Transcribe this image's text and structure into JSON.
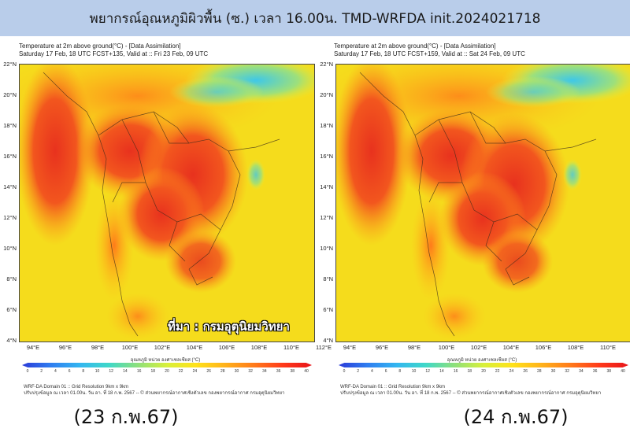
{
  "banner": {
    "title": "พยากรณ์อุณหภูมิผิวพื้น (ซ.) เวลา 16.00น. TMD-WRFDA init.2024021718"
  },
  "panels": [
    {
      "title_line1": "Temperature at 2m above ground(°C) - [Data Assimilation]",
      "title_line2": "Saturday 17 Feb, 18 UTC FCST+135, Valid at :: Fri 23 Feb, 09 UTC",
      "date_label": "(23 ก.พ.67)"
    },
    {
      "title_line1": "Temperature at 2m above ground(°C) - [Data Assimilation]",
      "title_line2": "Saturday 17 Feb, 18 UTC FCST+159, Valid at :: Sat 24 Feb, 09 UTC",
      "date_label": "(24 ก.พ.67)"
    }
  ],
  "axes": {
    "lat_labels": [
      "22°N",
      "20°N",
      "18°N",
      "16°N",
      "14°N",
      "12°N",
      "10°N",
      "8°N",
      "6°N",
      "4°N"
    ],
    "lon_labels": [
      "94°E",
      "96°E",
      "98°E",
      "100°E",
      "102°E",
      "104°E",
      "106°E",
      "108°E",
      "110°E",
      "112°E"
    ]
  },
  "colorbar": {
    "title": "อุณหภูมิ หน่วย องศาเซลเซียส (°C)",
    "ticks": [
      "0",
      "2",
      "4",
      "6",
      "8",
      "10",
      "12",
      "14",
      "16",
      "18",
      "20",
      "22",
      "24",
      "26",
      "28",
      "30",
      "32",
      "34",
      "36",
      "38",
      "40"
    ],
    "colors": [
      "#2b3bd8",
      "#2f7ef0",
      "#33b6f0",
      "#3fd8c8",
      "#8ee07a",
      "#d8f03a",
      "#ffe21a",
      "#ffb21a",
      "#ff7a1a",
      "#ff3a1a",
      "#e8141a"
    ]
  },
  "footer": {
    "line1": "WRF-DA Domain 01 :: Grid Resolution 9km x 9km",
    "line2": "ปรับปรุงข้อมูล ณ เวลา 01.00น. วัน อา. ที่ 18 ก.พ. 2567 -- © ส่วนพยากรณ์อากาศเชิงตัวเลข กองพยากรณ์อากาศ กรมอุตุนิยมวิทยา"
  },
  "source_credit": "ที่มา : กรมอุตุนิยมวิทยา"
}
